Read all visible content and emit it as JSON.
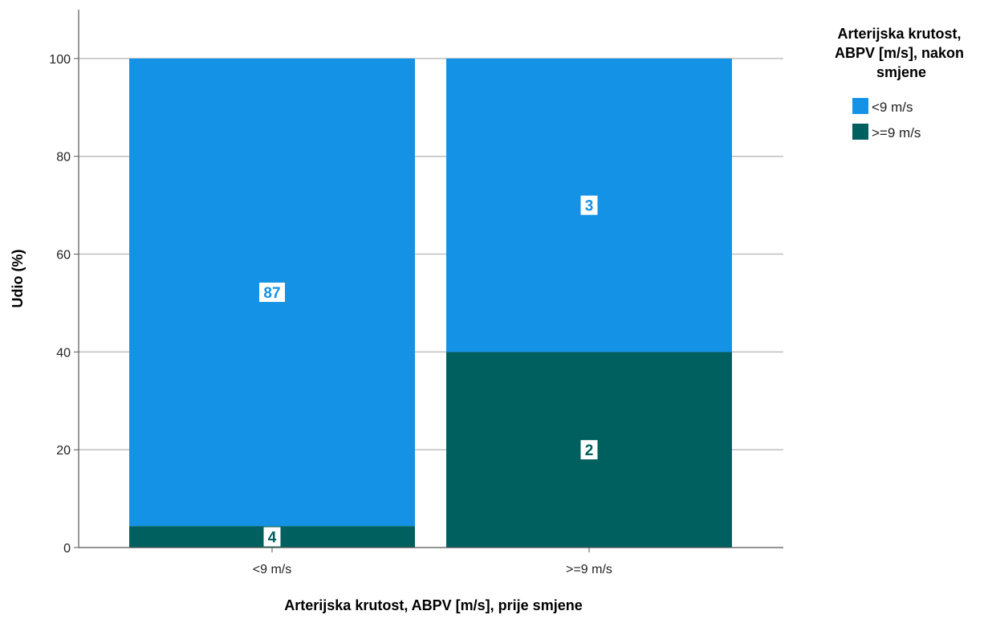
{
  "chart_data": {
    "type": "bar",
    "stacked": true,
    "xlabel": "Arterijska krutost, ABPV [m/s], prije smjene",
    "ylabel": "Udio (%)",
    "ylim": [
      0,
      110
    ],
    "yticks": [
      0,
      20,
      40,
      60,
      80,
      100
    ],
    "grid": true,
    "categories": [
      "<9 m/s",
      ">=9 m/s"
    ],
    "legend": {
      "title": "Arterijska krutost, ABPV [m/s], nakon smjene",
      "title_lines": [
        "Arterijska krutost,",
        "ABPV [m/s], nakon",
        "smjene"
      ],
      "placement": "top-right"
    },
    "series": [
      {
        "name": ">=9 m/s",
        "color": "#005f5f",
        "values": [
          4.4,
          40
        ],
        "labels": [
          "4",
          "2"
        ]
      },
      {
        "name": "<9 m/s",
        "color": "#1492e6",
        "values": [
          95.6,
          60
        ],
        "labels": [
          "87",
          "3"
        ]
      }
    ]
  }
}
